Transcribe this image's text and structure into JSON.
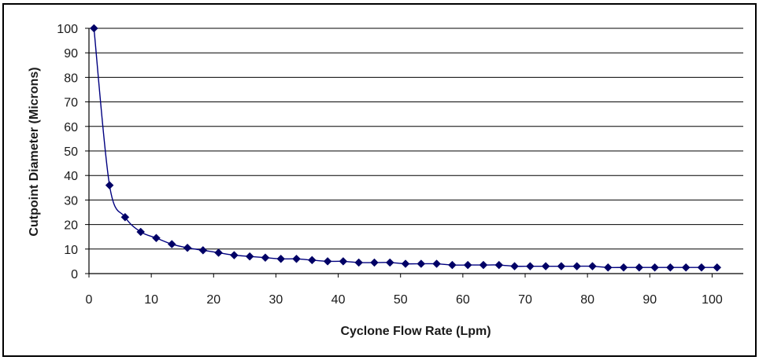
{
  "chart_data": {
    "type": "line",
    "title": "",
    "xlabel": "Cyclone Flow Rate (Lpm)",
    "ylabel": "Cutpoint Diameter (Microns)",
    "xlim": [
      0,
      105
    ],
    "ylim": [
      0,
      100
    ],
    "xticks": [
      "0",
      "10",
      "20",
      "30",
      "40",
      "50",
      "60",
      "70",
      "80",
      "90",
      "100"
    ],
    "yticks": [
      "0",
      "10",
      "20",
      "30",
      "40",
      "50",
      "60",
      "70",
      "80",
      "90",
      "100"
    ],
    "grid": "horizontal",
    "legend": "none",
    "colors": {
      "series": "#000080",
      "marker": "#000066",
      "grid": "#000000",
      "border": "#000000"
    },
    "series": [
      {
        "marker": "diamond",
        "x": [
          0.8,
          3.3,
          5.8,
          8.3,
          10.8,
          13.3,
          15.8,
          18.3,
          20.8,
          23.3,
          25.8,
          28.3,
          30.8,
          33.3,
          35.8,
          38.3,
          40.8,
          43.3,
          45.8,
          48.3,
          50.8,
          53.3,
          55.8,
          58.3,
          60.8,
          63.3,
          65.8,
          68.3,
          70.8,
          73.3,
          75.8,
          78.3,
          80.8,
          83.3,
          85.8,
          88.3,
          90.8,
          93.3,
          95.8,
          98.3,
          100.8
        ],
        "y": [
          100,
          36,
          23,
          17,
          14.5,
          12,
          10.5,
          9.5,
          8.5,
          7.5,
          7,
          6.5,
          6,
          6,
          5.5,
          5,
          5,
          4.5,
          4.5,
          4.5,
          4,
          4,
          4,
          3.5,
          3.5,
          3.5,
          3.5,
          3,
          3,
          3,
          3,
          3,
          3,
          2.5,
          2.5,
          2.5,
          2.5,
          2.5,
          2.5,
          2.5,
          2.5
        ]
      }
    ]
  }
}
